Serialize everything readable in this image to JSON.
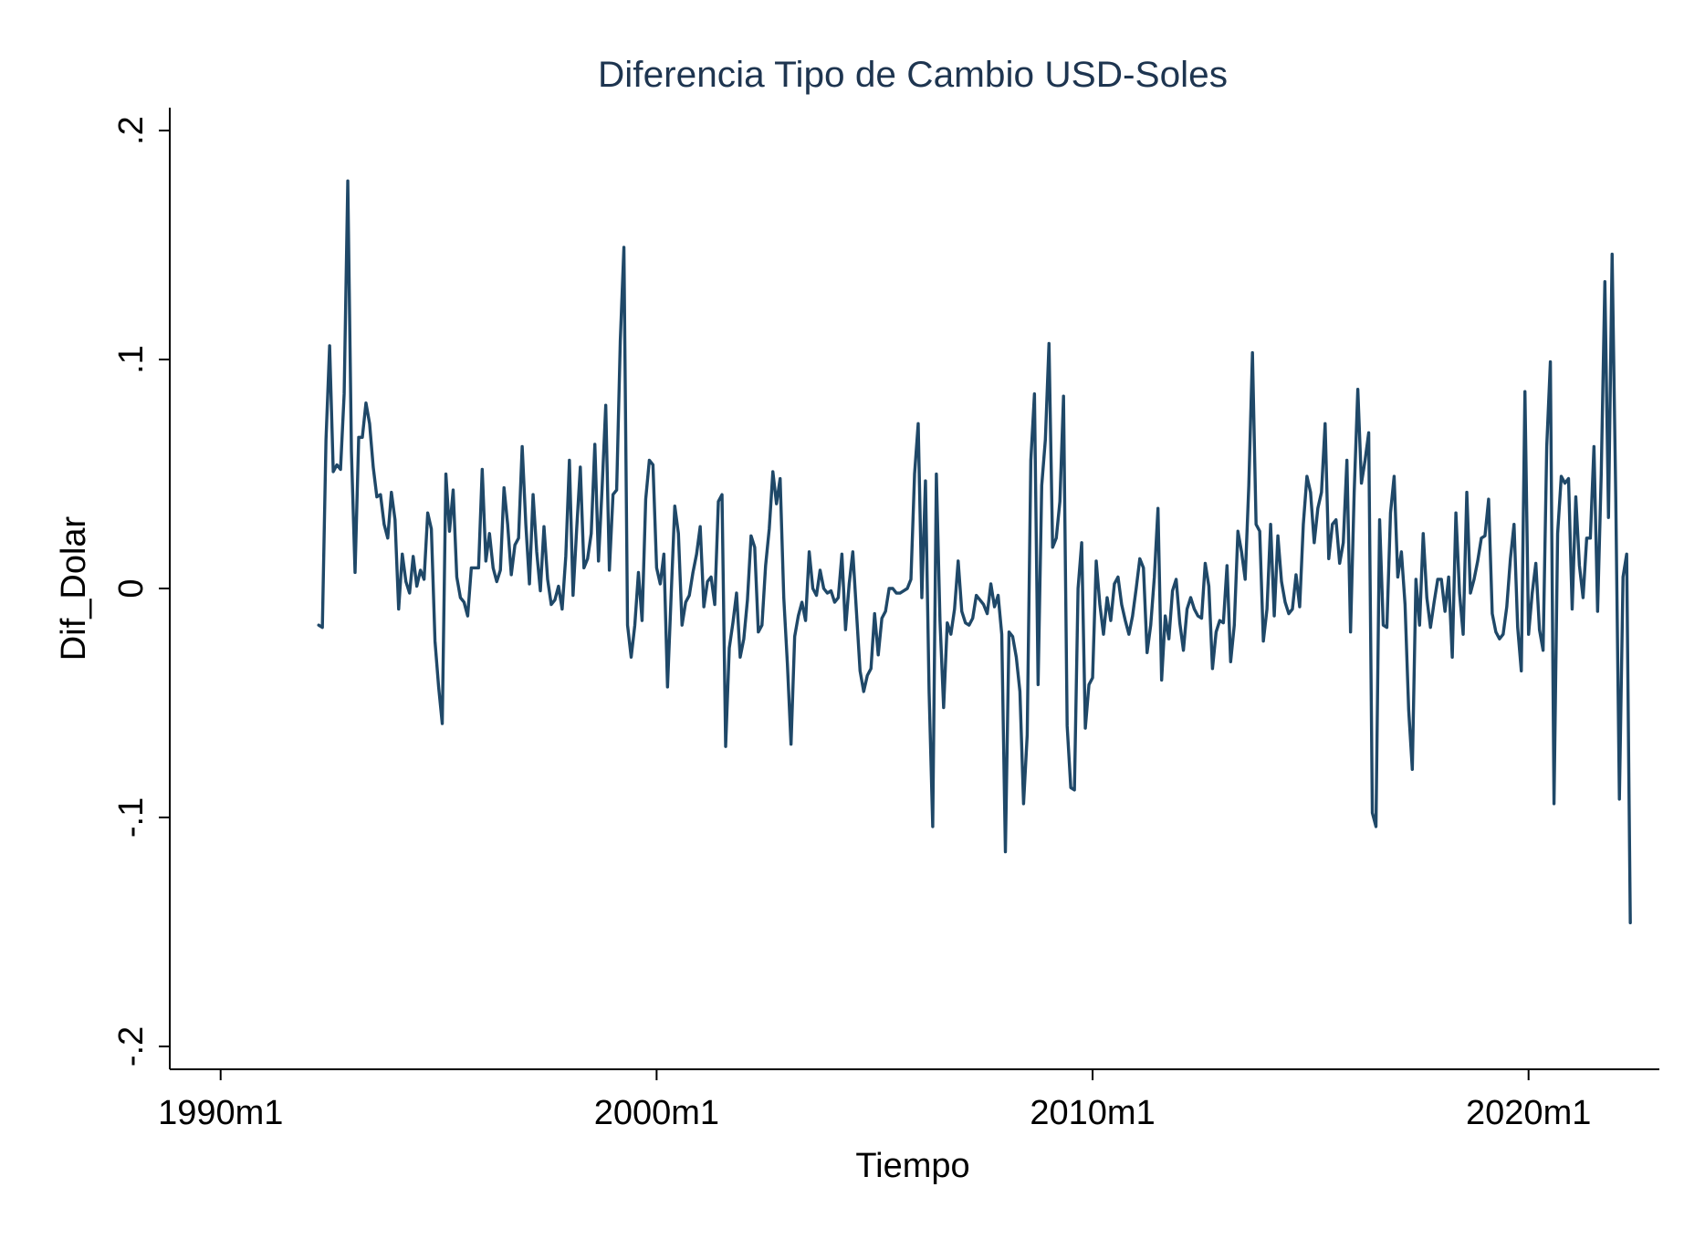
{
  "chart_data": {
    "type": "line",
    "title": "Diferencia Tipo de Cambio USD-Soles",
    "xlabel": "Tiempo",
    "ylabel": "Dif_Dolar",
    "x_start": "1992m4",
    "x_frequency": "monthly",
    "xlim": [
      "1988m11",
      "2023m1"
    ],
    "ylim": [
      -0.21,
      0.21
    ],
    "x_ticks": [
      {
        "label": "1990m1",
        "value": "1990m1"
      },
      {
        "label": "2000m1",
        "value": "2000m1"
      },
      {
        "label": "2010m1",
        "value": "2010m1"
      },
      {
        "label": "2020m1",
        "value": "2020m1"
      }
    ],
    "y_ticks": [
      {
        "label": "-.2",
        "value": -0.2
      },
      {
        "label": "-.1",
        "value": -0.1
      },
      {
        "label": "0",
        "value": 0
      },
      {
        "label": ".1",
        "value": 0.1
      },
      {
        "label": ".2",
        "value": 0.2
      }
    ],
    "grid": false,
    "line_color": "#1f4868",
    "series": [
      {
        "values": [
          -0.016,
          -0.017,
          0.065,
          0.106,
          0.051,
          0.054,
          0.052,
          0.085,
          0.178,
          0.06,
          0.007,
          0.066,
          0.066,
          0.081,
          0.072,
          0.053,
          0.04,
          0.041,
          0.028,
          0.022,
          0.042,
          0.03,
          -0.009,
          0.015,
          0.003,
          -0.002,
          0.014,
          0.001,
          0.008,
          0.004,
          0.033,
          0.026,
          -0.023,
          -0.043,
          -0.059,
          0.05,
          0.025,
          0.043,
          0.005,
          -0.004,
          -0.006,
          -0.012,
          0.009,
          0.009,
          0.009,
          0.052,
          0.012,
          0.024,
          0.009,
          0.003,
          0.008,
          0.044,
          0.028,
          0.006,
          0.019,
          0.022,
          0.062,
          0.028,
          0.002,
          0.041,
          0.016,
          -0.001,
          0.027,
          0.004,
          -0.007,
          -0.005,
          0.001,
          -0.009,
          0.014,
          0.056,
          -0.003,
          0.026,
          0.053,
          0.009,
          0.013,
          0.024,
          0.063,
          0.012,
          0.044,
          0.08,
          0.008,
          0.041,
          0.043,
          0.108,
          0.149,
          -0.016,
          -0.03,
          -0.016,
          0.007,
          -0.014,
          0.039,
          0.056,
          0.054,
          0.009,
          0.002,
          0.015,
          -0.043,
          -0.003,
          0.036,
          0.024,
          -0.016,
          -0.006,
          -0.003,
          0.007,
          0.015,
          0.027,
          -0.008,
          0.003,
          0.005,
          -0.007,
          0.038,
          0.041,
          -0.069,
          -0.026,
          -0.015,
          -0.002,
          -0.03,
          -0.022,
          -0.005,
          0.023,
          0.018,
          -0.019,
          -0.016,
          0.01,
          0.026,
          0.051,
          0.037,
          0.048,
          -0.004,
          -0.033,
          -0.068,
          -0.021,
          -0.012,
          -0.006,
          -0.014,
          0.016,
          0.0,
          -0.003,
          0.008,
          0.0,
          -0.002,
          -0.001,
          -0.006,
          -0.004,
          0.015,
          -0.018,
          0.002,
          0.016,
          -0.01,
          -0.036,
          -0.045,
          -0.038,
          -0.035,
          -0.011,
          -0.029,
          -0.013,
          -0.01,
          0.0,
          0.0,
          -0.002,
          -0.002,
          -0.001,
          0.0,
          0.004,
          0.05,
          0.072,
          -0.004,
          0.047,
          -0.045,
          -0.104,
          0.05,
          -0.014,
          -0.052,
          -0.015,
          -0.02,
          -0.009,
          0.012,
          -0.01,
          -0.015,
          -0.016,
          -0.013,
          -0.003,
          -0.005,
          -0.007,
          -0.011,
          0.002,
          -0.008,
          -0.003,
          -0.02,
          -0.115,
          -0.019,
          -0.021,
          -0.03,
          -0.045,
          -0.094,
          -0.064,
          0.056,
          0.085,
          -0.042,
          0.045,
          0.065,
          0.107,
          0.018,
          0.022,
          0.038,
          0.084,
          -0.06,
          -0.087,
          -0.088,
          0.0,
          0.02,
          -0.061,
          -0.042,
          -0.039,
          0.012,
          -0.007,
          -0.02,
          -0.004,
          -0.014,
          0.002,
          0.005,
          -0.007,
          -0.014,
          -0.02,
          -0.012,
          0.0,
          0.013,
          0.009,
          -0.028,
          -0.016,
          0.005,
          0.035,
          -0.04,
          -0.012,
          -0.022,
          -0.001,
          0.004,
          -0.015,
          -0.027,
          -0.009,
          -0.004,
          -0.009,
          -0.012,
          -0.013,
          0.011,
          0.001,
          -0.035,
          -0.019,
          -0.014,
          -0.015,
          0.01,
          -0.032,
          -0.016,
          0.025,
          0.016,
          0.004,
          0.045,
          0.103,
          0.028,
          0.025,
          -0.023,
          -0.009,
          0.028,
          -0.012,
          0.023,
          0.003,
          -0.006,
          -0.011,
          -0.009,
          0.006,
          -0.008,
          0.028,
          0.049,
          0.042,
          0.02,
          0.035,
          0.042,
          0.072,
          0.013,
          0.028,
          0.03,
          0.011,
          0.02,
          0.056,
          -0.019,
          0.042,
          0.087,
          0.046,
          0.056,
          0.068,
          -0.098,
          -0.104,
          0.03,
          -0.016,
          -0.017,
          0.033,
          0.049,
          0.005,
          0.016,
          -0.007,
          -0.053,
          -0.079,
          0.004,
          -0.016,
          0.024,
          -0.004,
          -0.017,
          -0.006,
          0.004,
          0.004,
          -0.01,
          0.005,
          -0.03,
          0.033,
          -0.002,
          -0.02,
          0.042,
          -0.002,
          0.004,
          0.012,
          0.022,
          0.023,
          0.039,
          -0.011,
          -0.019,
          -0.022,
          -0.02,
          -0.008,
          0.013,
          0.028,
          -0.017,
          -0.036,
          0.086,
          -0.02,
          -0.002,
          0.011,
          -0.018,
          -0.027,
          0.062,
          0.099,
          -0.094,
          0.024,
          0.049,
          0.046,
          0.048,
          -0.009,
          0.04,
          0.01,
          -0.004,
          0.022,
          0.022,
          0.062,
          -0.01,
          0.05,
          0.134,
          0.031,
          0.146,
          0.04,
          -0.092,
          0.005,
          0.015,
          -0.146
        ]
      }
    ]
  }
}
